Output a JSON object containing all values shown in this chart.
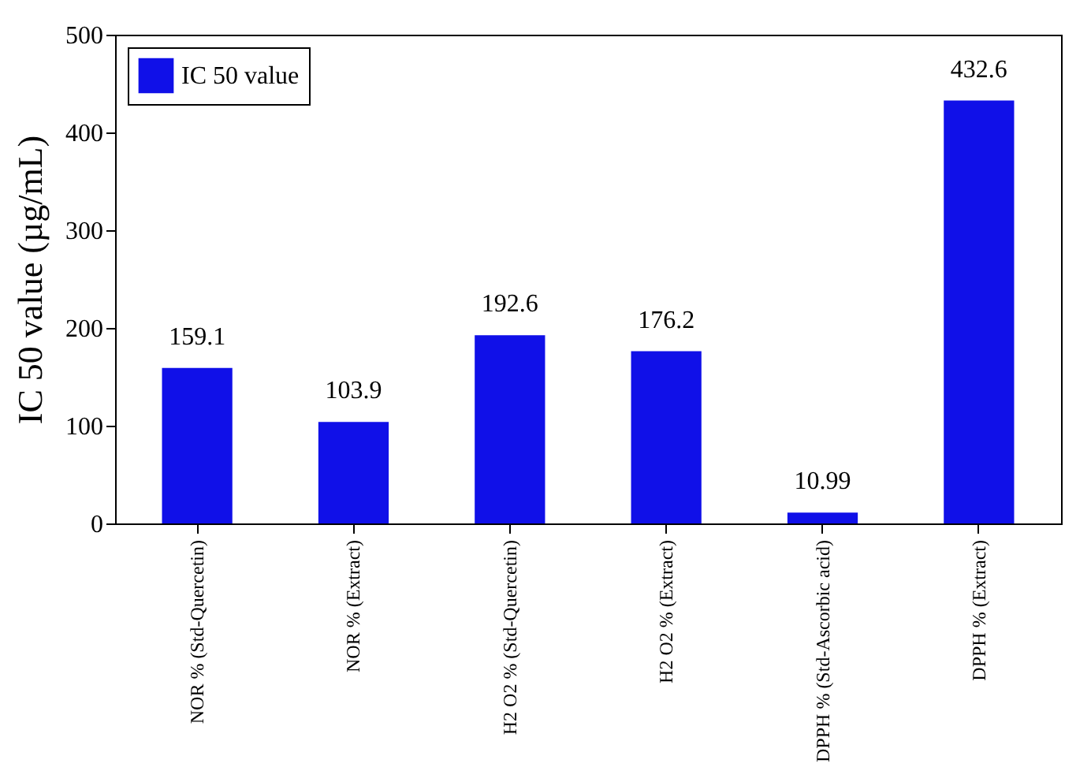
{
  "chart_data": {
    "type": "bar",
    "ylabel": "IC 50 value (µg/mL)",
    "categories": [
      "NOR % (Std-Quercetin)",
      "NOR % (Extract)",
      "H2 O2 % (Std-Quercetin)",
      "H2 O2 % (Extract)",
      "DPPH % (Std-Ascorbic acid)",
      "DPPH % (Extract)"
    ],
    "series": [
      {
        "name": "IC 50 value",
        "color": "#1010e8",
        "values": [
          159.1,
          103.9,
          192.6,
          176.2,
          10.99,
          432.6
        ]
      }
    ],
    "ylim": [
      0,
      500
    ],
    "yticks": [
      0,
      100,
      200,
      300,
      400,
      500
    ],
    "grid": false,
    "legend": "top left",
    "data_labels": true
  }
}
